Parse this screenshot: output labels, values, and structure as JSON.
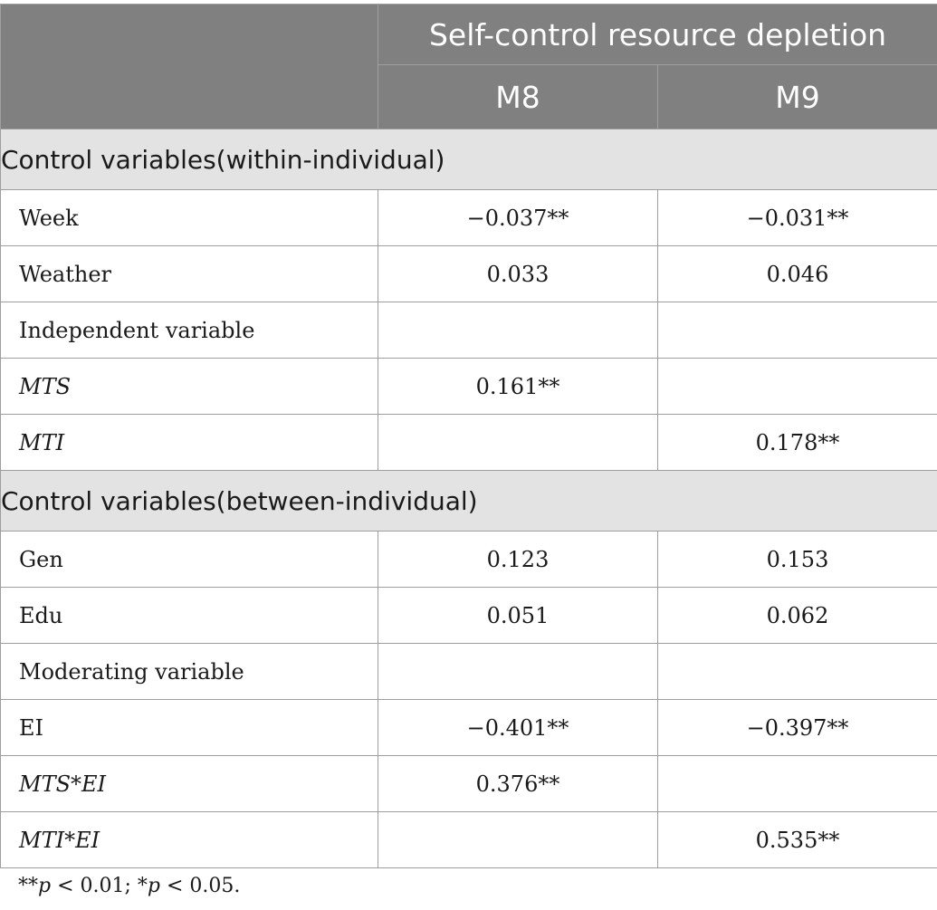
{
  "header": {
    "group_title": "Self-control resource depletion",
    "models": [
      "M8",
      "M9"
    ]
  },
  "sections": [
    {
      "title": "Control variables(within-individual)",
      "rows": [
        {
          "label": "Week",
          "italic": false,
          "m8": "−0.037**",
          "m9": "−0.031**"
        },
        {
          "label": "Weather",
          "italic": false,
          "m8": "0.033",
          "m9": "0.046"
        },
        {
          "label": "Independent variable",
          "italic": false,
          "m8": "",
          "m9": ""
        },
        {
          "label": "MTS",
          "italic": true,
          "m8": "0.161**",
          "m9": ""
        },
        {
          "label": "MTI",
          "italic": true,
          "m8": "",
          "m9": "0.178**"
        }
      ]
    },
    {
      "title": "Control variables(between-individual)",
      "rows": [
        {
          "label": "Gen",
          "italic": false,
          "m8": "0.123",
          "m9": "0.153"
        },
        {
          "label": "Edu",
          "italic": false,
          "m8": "0.051",
          "m9": "0.062"
        },
        {
          "label": "Moderating variable",
          "italic": false,
          "m8": "",
          "m9": ""
        },
        {
          "label": "EI",
          "italic": false,
          "m8": "−0.401**",
          "m9": "−0.397**"
        },
        {
          "label": "MTS*EI",
          "italic": true,
          "m8": "0.376**",
          "m9": ""
        },
        {
          "label": "MTI*EI",
          "italic": true,
          "m8": "",
          "m9": "0.535**"
        }
      ]
    }
  ],
  "footnote": {
    "part1_stars": "**",
    "part1_p": "p",
    "part1_rest": " < 0.01; *",
    "part2_p": "p",
    "part2_rest": " < 0.05."
  }
}
